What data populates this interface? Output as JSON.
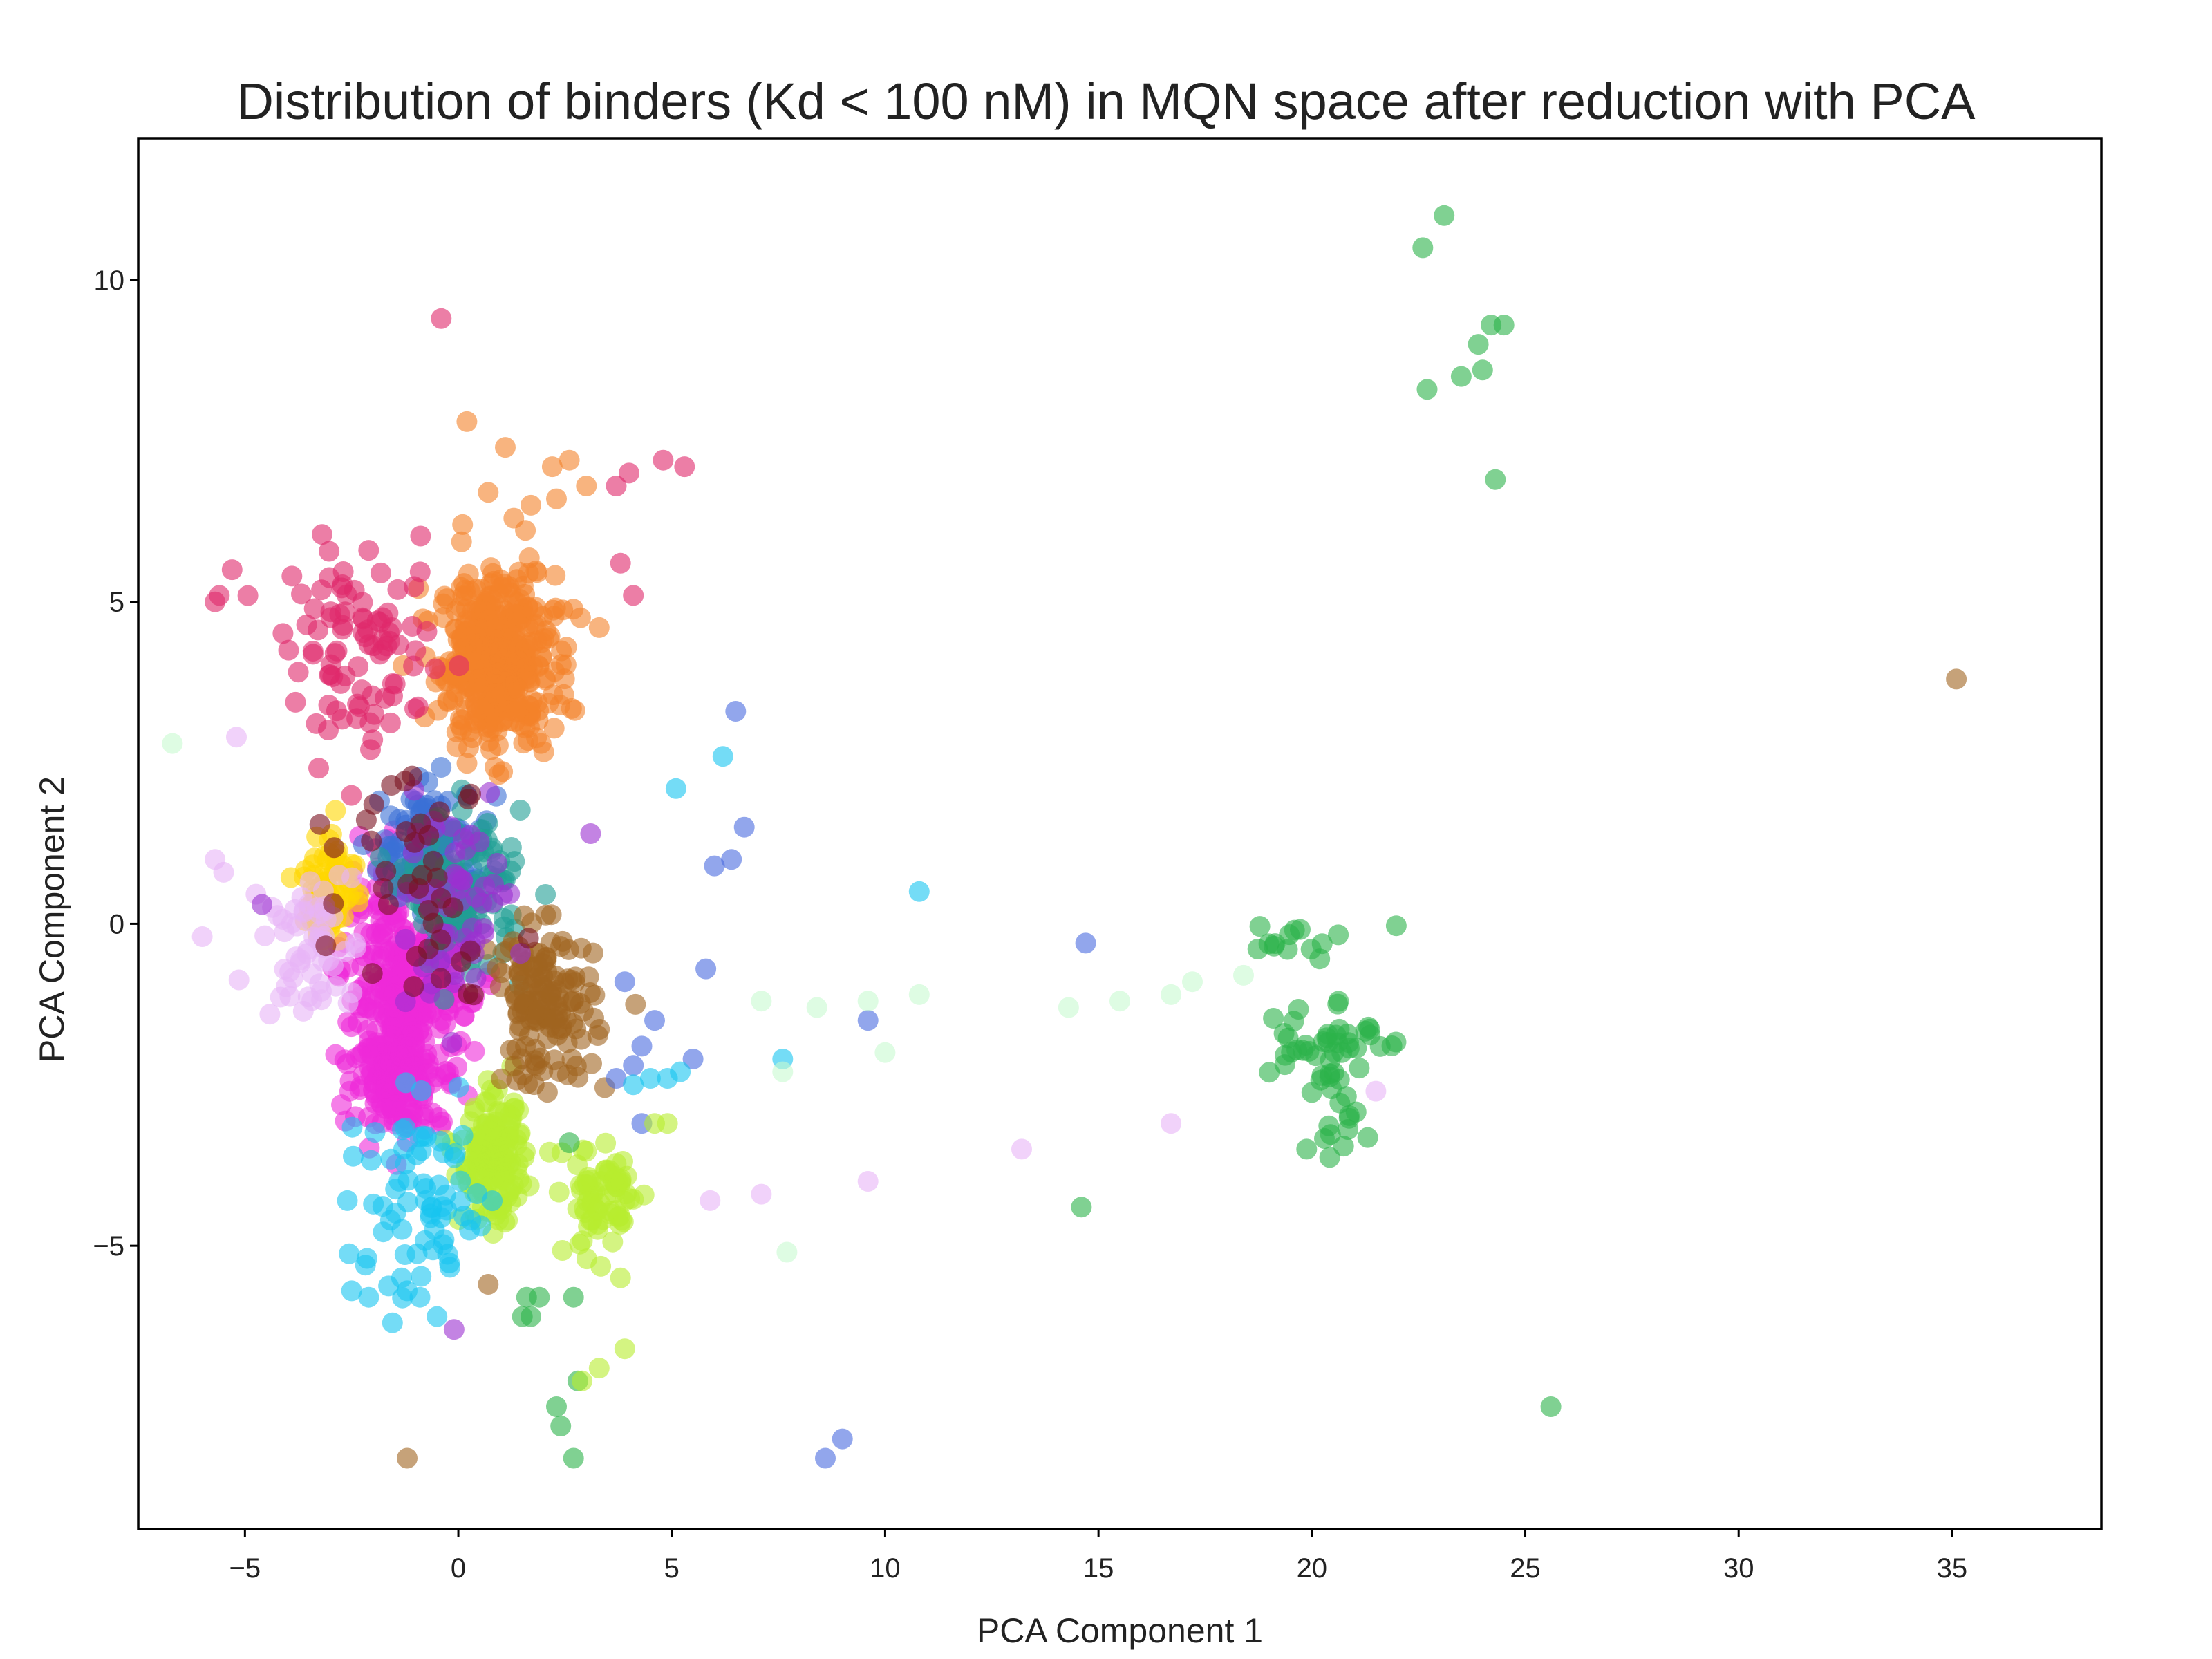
{
  "chart_data": {
    "type": "scatter",
    "title": "Distribution of binders (Kd < 100 nM) in MQN space after reduction with PCA",
    "xlabel": "PCA Component 1",
    "ylabel": "PCA Component 2",
    "xlim": [
      -7.5,
      38.5
    ],
    "ylim": [
      -9.4,
      12.2
    ],
    "xticks": [
      -5,
      0,
      5,
      10,
      15,
      20,
      25,
      30,
      35
    ],
    "xtick_labels": [
      "−5",
      "0",
      "5",
      "10",
      "15",
      "20",
      "25",
      "30",
      "35"
    ],
    "yticks": [
      -5,
      0,
      5,
      10
    ],
    "ytick_labels": [
      "−5",
      "0",
      "5",
      "10"
    ],
    "grid": false,
    "legend": "none",
    "marker_opacity": 0.6,
    "clusters": [
      {
        "color": "#f4822a",
        "center": [
          0.9,
          4.1
        ],
        "spread": [
          0.9,
          0.9
        ],
        "count": 420
      },
      {
        "color": "#ee2ad8",
        "center": [
          -1.2,
          -1.0
        ],
        "spread": [
          1.0,
          1.1
        ],
        "count": 360
      },
      {
        "color": "#ee2ad8",
        "center": [
          -1.4,
          -2.4
        ],
        "spread": [
          0.7,
          0.5
        ],
        "count": 140
      },
      {
        "color": "#3a6fd6",
        "center": [
          -0.6,
          1.2
        ],
        "spread": [
          0.8,
          0.6
        ],
        "count": 120
      },
      {
        "color": "#1f9e94",
        "center": [
          0.2,
          0.5
        ],
        "spread": [
          0.9,
          0.8
        ],
        "count": 110
      },
      {
        "color": "#b7ec2e",
        "center": [
          0.8,
          -3.7
        ],
        "spread": [
          0.5,
          0.6
        ],
        "count": 170
      },
      {
        "color": "#b7ec2e",
        "center": [
          3.4,
          -4.3
        ],
        "spread": [
          0.6,
          0.6
        ],
        "count": 70
      },
      {
        "color": "#a06420",
        "center": [
          2.0,
          -1.3
        ],
        "spread": [
          0.8,
          0.8
        ],
        "count": 140
      },
      {
        "color": "#ffd700",
        "center": [
          -3.0,
          0.6
        ],
        "spread": [
          0.4,
          0.6
        ],
        "count": 80
      },
      {
        "color": "#e0286a",
        "center": [
          -2.2,
          4.2
        ],
        "spread": [
          1.2,
          1.0
        ],
        "count": 90
      },
      {
        "color": "#17c4f0",
        "center": [
          -0.8,
          -4.4
        ],
        "spread": [
          1.2,
          1.0
        ],
        "count": 70
      },
      {
        "color": "#e8b4f6",
        "center": [
          -3.5,
          -0.3
        ],
        "spread": [
          0.7,
          0.8
        ],
        "count": 60
      },
      {
        "color": "#9b30d0",
        "center": [
          -0.2,
          0.3
        ],
        "spread": [
          1.0,
          1.0
        ],
        "count": 60
      },
      {
        "color": "#7a1020",
        "center": [
          -0.8,
          1.0
        ],
        "spread": [
          1.2,
          1.4
        ],
        "count": 40
      },
      {
        "color": "#2bb34a",
        "center": [
          20.2,
          -1.8
        ],
        "spread": [
          0.9,
          0.5
        ],
        "count": 45
      },
      {
        "color": "#2bb34a",
        "center": [
          19.5,
          -0.3
        ],
        "spread": [
          1.0,
          0.3
        ],
        "count": 14
      },
      {
        "color": "#2bb34a",
        "center": [
          20.5,
          -3.1
        ],
        "spread": [
          0.6,
          0.4
        ],
        "count": 14
      }
    ],
    "points": [
      {
        "color": "#2bb34a",
        "xy": [
          [
            22.6,
            10.5
          ],
          [
            23.1,
            11.0
          ],
          [
            24.2,
            9.3
          ],
          [
            24.5,
            9.3
          ],
          [
            23.9,
            9.0
          ],
          [
            24.0,
            8.6
          ],
          [
            23.5,
            8.5
          ],
          [
            22.7,
            8.3
          ],
          [
            24.3,
            6.9
          ],
          [
            25.6,
            -7.5
          ],
          [
            14.6,
            -4.4
          ],
          [
            1.6,
            -5.8
          ],
          [
            1.9,
            -5.8
          ],
          [
            1.7,
            -6.1
          ],
          [
            1.5,
            -6.1
          ],
          [
            2.3,
            -7.5
          ],
          [
            2.4,
            -7.8
          ],
          [
            2.7,
            -8.3
          ],
          [
            2.7,
            -5.8
          ],
          [
            2.8,
            -7.1
          ],
          [
            2.6,
            -3.4
          ]
        ]
      },
      {
        "color": "#a06420",
        "xy": [
          [
            35.1,
            3.8
          ],
          [
            -1.2,
            -8.3
          ],
          [
            0.7,
            -5.6
          ]
        ]
      },
      {
        "color": "#4a6be0",
        "xy": [
          [
            8.6,
            -8.3
          ],
          [
            9.0,
            -8.0
          ],
          [
            14.7,
            -0.3
          ],
          [
            9.6,
            -1.5
          ],
          [
            6.5,
            3.3
          ],
          [
            6.7,
            1.5
          ],
          [
            6.4,
            1.0
          ],
          [
            6.0,
            0.9
          ],
          [
            5.8,
            -0.7
          ],
          [
            5.5,
            -2.1
          ],
          [
            4.6,
            -1.5
          ],
          [
            4.3,
            -1.9
          ],
          [
            4.1,
            -2.2
          ],
          [
            3.9,
            -0.9
          ],
          [
            3.7,
            -2.4
          ],
          [
            4.3,
            -3.1
          ]
        ]
      },
      {
        "color": "#17c4f0",
        "xy": [
          [
            10.8,
            0.5
          ],
          [
            7.6,
            -2.1
          ],
          [
            5.1,
            2.1
          ],
          [
            6.2,
            2.6
          ],
          [
            5.2,
            -2.3
          ],
          [
            4.9,
            -2.4
          ],
          [
            4.5,
            -2.4
          ],
          [
            4.1,
            -2.5
          ],
          [
            -2.5,
            -5.7
          ],
          [
            -2.1,
            -5.8
          ],
          [
            -0.5,
            -6.1
          ],
          [
            -0.9,
            -5.8
          ],
          [
            -1.2,
            -5.7
          ],
          [
            -2.6,
            -4.3
          ]
        ]
      },
      {
        "color": "#e8b4f6",
        "xy": [
          [
            -5.7,
            1.0
          ],
          [
            -5.5,
            0.8
          ],
          [
            -6.0,
            -0.2
          ],
          [
            -5.2,
            2.9
          ],
          [
            13.2,
            -3.5
          ],
          [
            16.7,
            -3.1
          ],
          [
            9.6,
            -4.0
          ],
          [
            7.1,
            -4.2
          ],
          [
            5.9,
            -4.3
          ],
          [
            21.5,
            -2.6
          ]
        ]
      },
      {
        "color": "#c8fad0",
        "xy": [
          [
            -6.7,
            2.8
          ],
          [
            7.1,
            -1.2
          ],
          [
            8.4,
            -1.3
          ],
          [
            9.6,
            -1.2
          ],
          [
            10.0,
            -2.0
          ],
          [
            10.8,
            -1.1
          ],
          [
            14.3,
            -1.3
          ],
          [
            15.5,
            -1.2
          ],
          [
            16.7,
            -1.1
          ],
          [
            17.2,
            -0.9
          ],
          [
            18.4,
            -0.8
          ],
          [
            7.7,
            -5.1
          ],
          [
            7.6,
            -2.3
          ]
        ]
      },
      {
        "color": "#e0286a",
        "xy": [
          [
            -0.4,
            9.4
          ],
          [
            -5.3,
            5.5
          ],
          [
            -5.7,
            5.0
          ],
          [
            -5.6,
            5.1
          ],
          [
            -3.9,
            5.4
          ],
          [
            4.8,
            7.2
          ],
          [
            5.3,
            7.1
          ],
          [
            4.0,
            7.0
          ],
          [
            4.1,
            5.1
          ],
          [
            3.8,
            5.6
          ],
          [
            3.7,
            6.8
          ]
        ]
      },
      {
        "color": "#f4822a",
        "xy": [
          [
            0.2,
            7.8
          ],
          [
            1.1,
            7.4
          ],
          [
            2.2,
            7.1
          ],
          [
            2.6,
            7.2
          ],
          [
            3.0,
            6.8
          ],
          [
            2.3,
            6.6
          ],
          [
            1.7,
            6.5
          ],
          [
            0.7,
            6.7
          ],
          [
            1.3,
            6.3
          ],
          [
            0.1,
            6.2
          ],
          [
            3.3,
            4.6
          ]
        ]
      },
      {
        "color": "#b7ec2e",
        "xy": [
          [
            3.9,
            -6.6
          ],
          [
            3.3,
            -6.9
          ],
          [
            2.9,
            -7.1
          ],
          [
            4.6,
            -3.1
          ],
          [
            4.9,
            -3.1
          ],
          [
            3.8,
            -5.5
          ]
        ]
      },
      {
        "color": "#9b30d0",
        "xy": [
          [
            -0.1,
            -6.3
          ],
          [
            3.1,
            1.4
          ],
          [
            -4.6,
            0.3
          ]
        ]
      }
    ]
  }
}
